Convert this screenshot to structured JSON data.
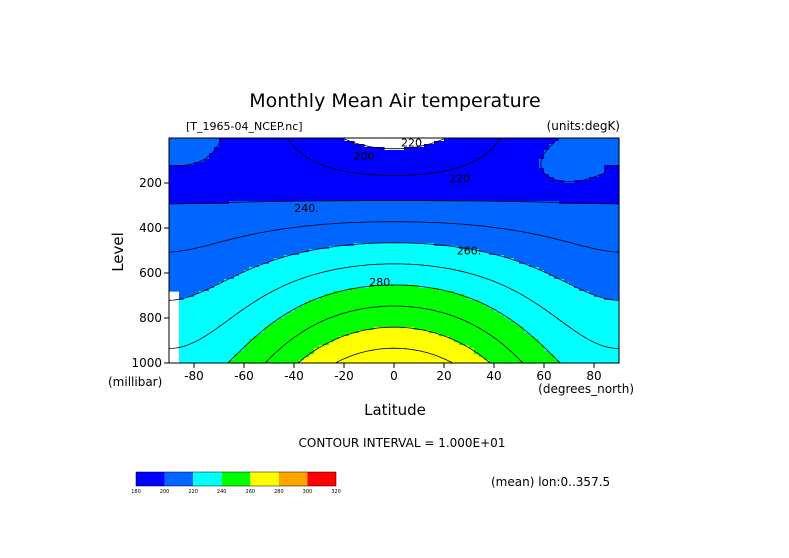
{
  "chart_data": {
    "type": "contour",
    "title": "Monthly Mean Air temperature",
    "source_label": "[T_1965-04_NCEP.nc]",
    "units_label": "(units:degK)",
    "xlabel": "Latitude",
    "ylabel": "Level",
    "x_unit_label": "(degrees_north)",
    "y_unit_label": "(millibar)",
    "xlim": [
      -90,
      90
    ],
    "ylim": [
      1000,
      0
    ],
    "x_ticks": [
      -80,
      -60,
      -40,
      -20,
      0,
      20,
      40,
      60,
      80
    ],
    "x_tick_labels": [
      "-80",
      "-60",
      "-40",
      "-20",
      "0",
      "20",
      "40",
      "60",
      "80"
    ],
    "y_ticks": [
      200,
      400,
      600,
      800,
      1000
    ],
    "y_tick_labels": [
      "200",
      "400",
      "600",
      "800",
      "1000"
    ],
    "contour_levels": [
      200,
      210,
      220,
      230,
      240,
      250,
      260,
      270,
      280,
      290
    ],
    "contour_labels": [
      {
        "text": "220",
        "lat": 7,
        "p": 20
      },
      {
        "text": "200",
        "lat": -12,
        "p": 80
      },
      {
        "text": "220.",
        "lat": 27,
        "p": 180
      },
      {
        "text": "240.",
        "lat": -35,
        "p": 310
      },
      {
        "text": "260.",
        "lat": 30,
        "p": 500
      },
      {
        "text": "280.",
        "lat": -5,
        "p": 640
      }
    ],
    "contour_interval_text": "CONTOUR INTERVAL = 1.000E+01",
    "mean_text": "(mean) lon:0..357.5",
    "colorbar": {
      "bounds": [
        "180",
        "200",
        "220",
        "240",
        "260",
        "280",
        "300",
        "320"
      ],
      "colors": [
        "#0000ff",
        "#0066ff",
        "#00ffff",
        "#00ff00",
        "#ffff00",
        "#ffa500",
        "#ff0000"
      ]
    },
    "fill_bands": [
      {
        "temp_min": 200,
        "color": "#0000ff"
      },
      {
        "temp_min": 220,
        "color": "#0066ff"
      },
      {
        "temp_min": 240,
        "color": "#00ffff"
      },
      {
        "temp_min": 260,
        "color": "#00ff00"
      },
      {
        "temp_min": 280,
        "color": "#ffff00"
      },
      {
        "temp_min": 300,
        "color": "#ffa500"
      }
    ]
  }
}
